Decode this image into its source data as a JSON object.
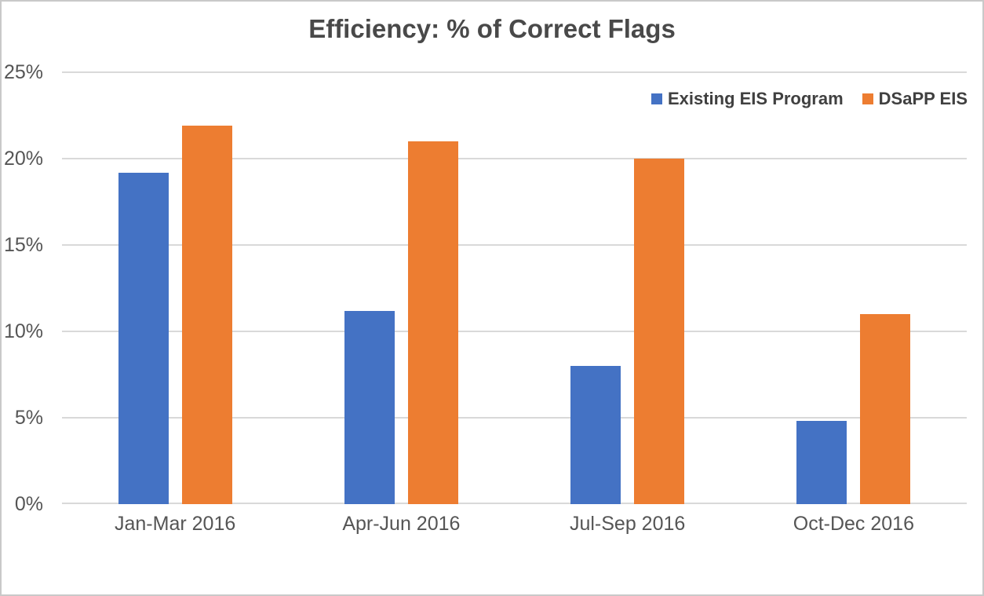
{
  "chart_data": {
    "type": "bar",
    "title": "Efficiency: % of Correct Flags",
    "categories": [
      "Jan-Mar 2016",
      "Apr-Jun 2016",
      "Jul-Sep 2016",
      "Oct-Dec 2016"
    ],
    "series": [
      {
        "name": "Existing EIS Program",
        "color": "#4472C4",
        "values": [
          19.2,
          11.2,
          8.0,
          4.8
        ]
      },
      {
        "name": "DSaPP EIS",
        "color": "#ED7D31",
        "values": [
          21.9,
          21.0,
          20.0,
          11.0
        ]
      }
    ],
    "xlabel": "",
    "ylabel": "",
    "ylim": [
      0,
      25
    ],
    "ytick_step": 5,
    "ytick_labels": [
      "0%",
      "5%",
      "10%",
      "15%",
      "20%",
      "25%"
    ],
    "grid": true,
    "legend_position": "top-right",
    "colors": {
      "gridline": "#d9d9d9",
      "axis_text": "#555555",
      "title_text": "#494949",
      "legend_text": "#404040",
      "border": "#c9c9c9",
      "background": "#ffffff"
    }
  }
}
